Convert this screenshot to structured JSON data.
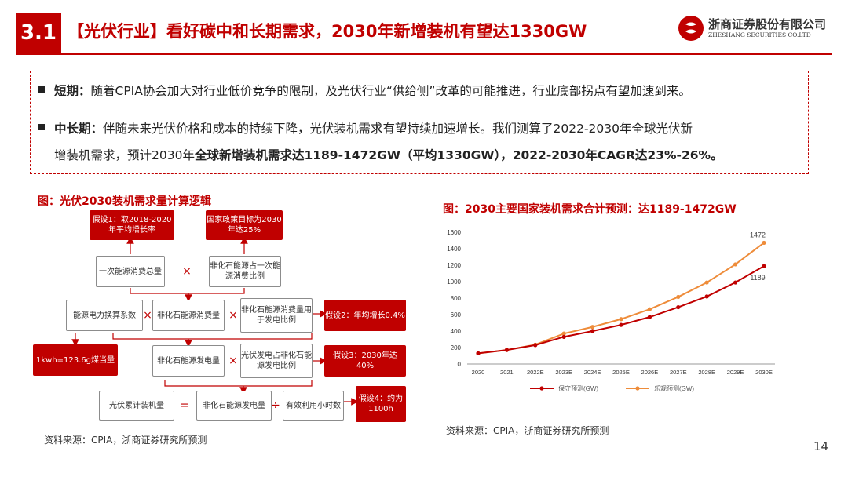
{
  "header": {
    "section_number": "3.1",
    "title": "【光伏行业】看好碳中和长期需求，2030年新增装机有望达1330GW"
  },
  "logo": {
    "name_cn": "浙商证券股份有限公司",
    "name_en": "ZHESHANG SECURITIES CO.LTD"
  },
  "summary": {
    "short_term": {
      "label": "短期：",
      "text": "随着CPIA协会加大对行业低价竞争的限制，及光伏行业“供给侧”改革的可能推进，行业底部拐点有望加速到来。"
    },
    "mid_long_term": {
      "label": "中长期：",
      "text_line1": "伴随未来光伏价格和成本的持续下降，光伏装机需求有望持续加速增长。我们测算了2022-2030年全球光伏新",
      "text_line2_plain": "增装机需求，预计2030年",
      "text_line2_bold": "全球新增装机需求达1189-1472GW（平均1330GW），2022-2030年CAGR达23%-26%。"
    }
  },
  "left_figure": {
    "title": "图：光伏2030装机需求量计算逻辑",
    "nodes": {
      "assump1": "假设1：取2018-2020年平均增长率",
      "policy_target": "国家政策目标为2030年达25%",
      "primary_energy": "一次能源消费总量",
      "nonfossil_share": "非化石能源占一次能源消费比例",
      "power_coef": "能源电力换算系数",
      "nonfossil_consumption": "非化石能源消费量",
      "nonfossil_power_share": "非化石能源消费量用于发电比例",
      "assump2": "假设2：年均增长0.4%",
      "coal_equiv": "1kwh=123.6g煤当量",
      "nonfossil_generation": "非化石能源发电量",
      "pv_share": "光伏发电占非化石能源发电比例",
      "assump3": "假设3：2030年达40%",
      "pv_cumulative": "光伏累计装机量",
      "nonfossil_generation_2": "非化石能源发电量",
      "utilization_hours": "有效利用小时数",
      "assump4": "假设4：约为1100h"
    },
    "operators": {
      "times": "×",
      "equals": "=",
      "divide": "÷"
    },
    "source": "资料来源：CPIA，浙商证券研究所预测"
  },
  "right_figure": {
    "title": "图：2030主要国家装机需求合计预测：达1189-1472GW",
    "source": "资料来源：CPIA，浙商证券研究所预测"
  },
  "chart_data": {
    "type": "line",
    "title": "2030主要国家装机需求合计预测：达1189-1472GW",
    "categories": [
      "2020",
      "2021",
      "2022E",
      "2023E",
      "2024E",
      "2025E",
      "2026E",
      "2027E",
      "2028E",
      "2029E",
      "2030E"
    ],
    "series": [
      {
        "name": "保守预测(GW)",
        "color": "#c00000",
        "marker": "circle",
        "values": [
          130,
          170,
          230,
          330,
          400,
          475,
          570,
          690,
          820,
          990,
          1189
        ]
      },
      {
        "name": "乐观预测(GW)",
        "color": "#ee8c3a",
        "marker": "circle",
        "values": [
          130,
          170,
          235,
          370,
          450,
          545,
          665,
          815,
          990,
          1210,
          1472
        ]
      }
    ],
    "end_labels": [
      "1189",
      "1472"
    ],
    "yticks": [
      "0",
      "200",
      "400",
      "600",
      "800",
      "1000",
      "1200",
      "1400",
      "1600"
    ],
    "ylim": [
      0,
      1600
    ],
    "grid": false,
    "legend": "bottom",
    "xlabel": "",
    "ylabel": ""
  },
  "page_number": "14",
  "colors": {
    "accent": "#c00000",
    "orange": "#ee8c3a"
  }
}
